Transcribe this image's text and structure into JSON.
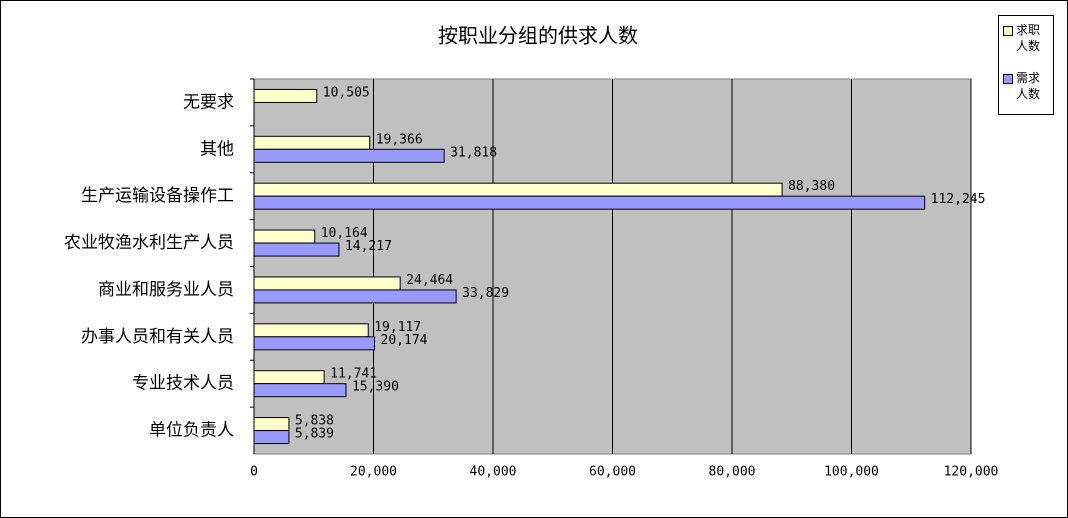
{
  "chart_data": {
    "type": "hbar",
    "title": "按职业分组的供求人数",
    "categories": [
      "无要求",
      "其他",
      "生产运输设备操作工",
      "农业牧渔水利生产人员",
      "商业和服务业人员",
      "办事人员和有关人员",
      "专业技术人员",
      "单位负责人"
    ],
    "series": [
      {
        "name": "求职人数",
        "color": "#FFFFCC",
        "values": [
          10505,
          19366,
          88380,
          10164,
          24464,
          19117,
          11741,
          5838
        ],
        "value_labels": [
          "10,505",
          "19,366",
          "88,380",
          "10,164",
          "24,464",
          "19,117",
          "11,741",
          "5,838"
        ]
      },
      {
        "name": "需求人数",
        "color": "#9999FF",
        "values": [
          null,
          31818,
          112245,
          14217,
          33829,
          20174,
          15390,
          5839
        ],
        "value_labels": [
          null,
          "31,818",
          "112,245",
          "14,217",
          "33,829",
          "20,174",
          "15,390",
          "5,839"
        ]
      }
    ],
    "xlim": [
      0,
      120000
    ],
    "xticks": [
      0,
      {
        "value": 20000,
        "label": "20,000"
      },
      {
        "value": 40000,
        "label": "40,000"
      },
      {
        "value": 60000,
        "label": "60,000"
      },
      {
        "value": 80000,
        "label": "80,000"
      },
      {
        "value": 100000,
        "label": "100,000"
      },
      {
        "value": 120000,
        "label": "120,000"
      }
    ],
    "grid": true,
    "plot_background": "#C0C0C0",
    "legend": "top-right"
  }
}
